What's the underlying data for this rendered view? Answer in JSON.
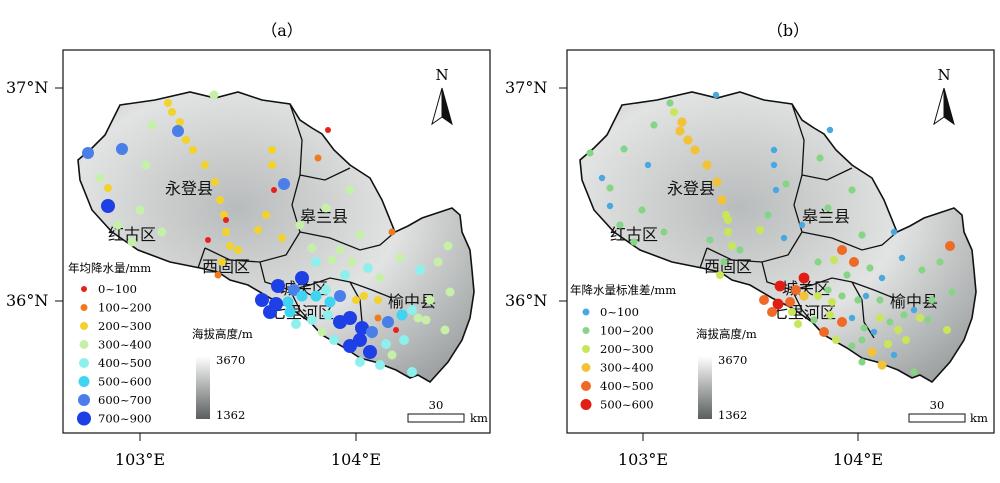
{
  "figure": {
    "panels": [
      {
        "id": "a",
        "label": "（a）",
        "lat_tick_labels": [
          "37°N",
          "36°N"
        ],
        "lon_tick_labels": [
          "103°E",
          "104°E"
        ],
        "north_label": "N",
        "county_labels": [
          "永登县",
          "皋兰县",
          "红古区",
          "西固区",
          "城关区",
          "七里河区",
          "榆中县"
        ],
        "legend": {
          "title": "年均降水量/mm",
          "items": [
            {
              "label": "0~100",
              "color": "#e8221b"
            },
            {
              "label": "100~200",
              "color": "#f07a22"
            },
            {
              "label": "200~300",
              "color": "#f2d22c"
            },
            {
              "label": "300~400",
              "color": "#c6f0aa"
            },
            {
              "label": "400~500",
              "color": "#8ef0ec"
            },
            {
              "label": "500~600",
              "color": "#3fd4f2"
            },
            {
              "label": "600~700",
              "color": "#4a7ee8"
            },
            {
              "label": "700~900",
              "color": "#1f3fe6"
            }
          ]
        },
        "elevation": {
          "title": "海拔高度/m",
          "max": "3670",
          "min": "1362"
        },
        "scale": {
          "value": "30",
          "unit": "km"
        }
      },
      {
        "id": "b",
        "label": "（b）",
        "lat_tick_labels": [
          "37°N",
          "36°N"
        ],
        "lon_tick_labels": [
          "103°E",
          "104°E"
        ],
        "north_label": "N",
        "county_labels": [
          "永登县",
          "皋兰县",
          "红古区",
          "西固区",
          "城关区",
          "七里河区",
          "榆中县"
        ],
        "legend": {
          "title": "年降水量标准差/mm",
          "items": [
            {
              "label": "0~100",
              "color": "#4aa8e0"
            },
            {
              "label": "100~200",
              "color": "#86d486"
            },
            {
              "label": "200~300",
              "color": "#c8e65a"
            },
            {
              "label": "300~400",
              "color": "#f2c23a"
            },
            {
              "label": "400~500",
              "color": "#ee6a26"
            },
            {
              "label": "500~600",
              "color": "#e01e14"
            }
          ]
        },
        "elevation": {
          "title": "海拔高度/m",
          "max": "3670",
          "min": "1362"
        },
        "scale": {
          "value": "30",
          "unit": "km"
        }
      }
    ]
  }
}
